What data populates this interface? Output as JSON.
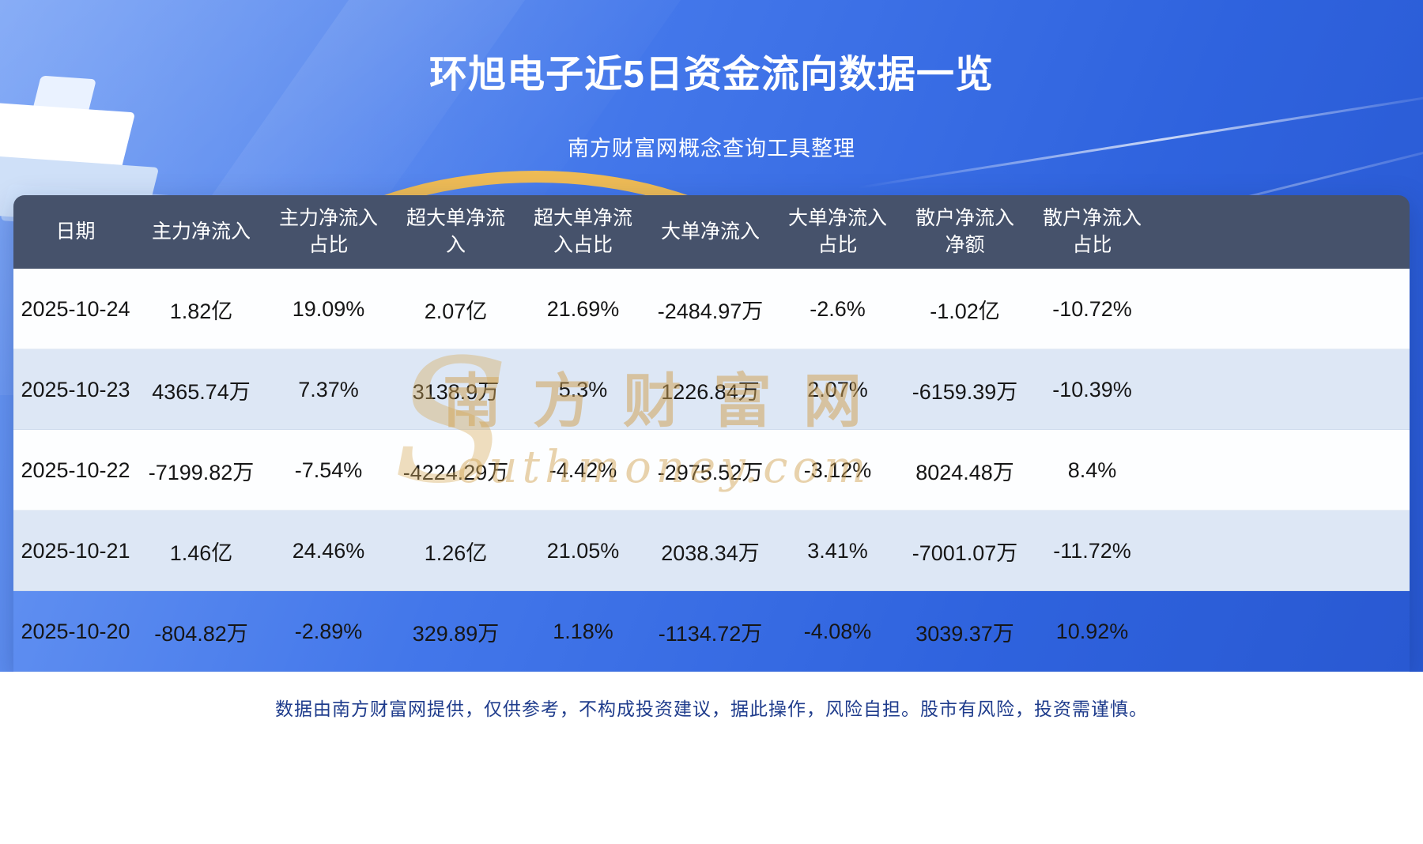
{
  "page": {
    "title": "环旭电子近5日资金流向数据一览",
    "subtitle": "南方财富网概念查询工具整理",
    "disclaimer": "数据由南方财富网提供，仅供参考，不构成投资建议，据此操作，风险自担。股市有风险，投资需谨慎。"
  },
  "watermark": {
    "initial": "S",
    "brand": "南方财富网",
    "domain_rest": "outhmoney.com"
  },
  "colors": {
    "background_top": "#6f9cf4",
    "background_bottom": "#2857d0",
    "header_row": "#46526b",
    "row_light": "#dde7f5",
    "row_white": "#fdfeff",
    "gold_arc": "#eebb55",
    "title_text": "#ffffff",
    "cell_text": "#161616",
    "disclaimer_text": "#1f3c8c",
    "watermark_gold": "#d0a252"
  },
  "table": {
    "columns_display": [
      "日期",
      "主力净流入",
      "主力净流入\n占比",
      "超大单净流\n入",
      "超大单净流\n入占比",
      "大单净流入",
      "大单净流入\n占比",
      "散户净流入\n净额",
      "散户净流入\n占比"
    ]
  },
  "chart_data": {
    "type": "table",
    "title": "环旭电子近5日资金流向数据一览",
    "subtitle": "南方财富网概念查询工具整理",
    "columns": [
      "日期",
      "主力净流入",
      "主力净流入占比",
      "超大单净流入",
      "超大单净流入占比",
      "大单净流入",
      "大单净流入占比",
      "散户净流入净额",
      "散户净流入占比"
    ],
    "rows": [
      [
        "2025-10-24",
        "1.82亿",
        "19.09%",
        "2.07亿",
        "21.69%",
        "-2484.97万",
        "-2.6%",
        "-1.02亿",
        "-10.72%"
      ],
      [
        "2025-10-23",
        "4365.74万",
        "7.37%",
        "3138.9万",
        "5.3%",
        "1226.84万",
        "2.07%",
        "-6159.39万",
        "-10.39%"
      ],
      [
        "2025-10-22",
        "-7199.82万",
        "-7.54%",
        "-4224.29万",
        "-4.42%",
        "-2975.52万",
        "-3.12%",
        "8024.48万",
        "8.4%"
      ],
      [
        "2025-10-21",
        "1.46亿",
        "24.46%",
        "1.26亿",
        "21.05%",
        "2038.34万",
        "3.41%",
        "-7001.07万",
        "-11.72%"
      ],
      [
        "2025-10-20",
        "-804.82万",
        "-2.89%",
        "329.89万",
        "1.18%",
        "-1134.72万",
        "-4.08%",
        "3039.37万",
        "10.92%"
      ]
    ]
  }
}
